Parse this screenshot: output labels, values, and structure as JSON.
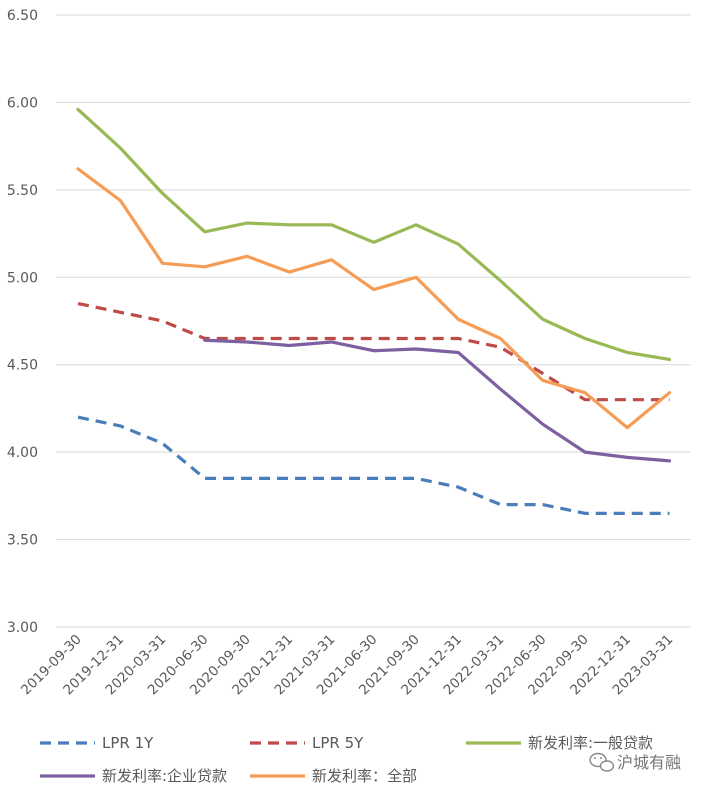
{
  "chart_data": {
    "type": "line",
    "categories": [
      "2019-09-30",
      "2019-12-31",
      "2020-03-31",
      "2020-06-30",
      "2020-09-30",
      "2020-12-31",
      "2021-03-31",
      "2021-06-30",
      "2021-09-30",
      "2021-12-31",
      "2022-03-31",
      "2022-06-30",
      "2022-09-30",
      "2022-12-31",
      "2023-03-31"
    ],
    "ylim": [
      3.0,
      6.5
    ],
    "yticks": [
      "3.00",
      "3.50",
      "4.00",
      "4.50",
      "5.00",
      "5.50",
      "6.00",
      "6.50"
    ],
    "grid": true,
    "legend_position": "bottom",
    "series": [
      {
        "name": "LPR 1Y",
        "color": "#4a7ebb",
        "dash": true,
        "values": [
          4.2,
          4.15,
          4.05,
          3.85,
          3.85,
          3.85,
          3.85,
          3.85,
          3.85,
          3.8,
          3.7,
          3.7,
          3.65,
          3.65,
          3.65
        ]
      },
      {
        "name": "LPR 5Y",
        "color": "#be4b48",
        "dash": true,
        "values": [
          4.85,
          4.8,
          4.75,
          4.65,
          4.65,
          4.65,
          4.65,
          4.65,
          4.65,
          4.65,
          4.6,
          4.45,
          4.3,
          4.3,
          4.3
        ]
      },
      {
        "name": "新发利率:一般贷款",
        "color": "#98b954",
        "dash": false,
        "values": [
          5.96,
          5.74,
          5.48,
          5.26,
          5.31,
          5.3,
          5.3,
          5.2,
          5.3,
          5.19,
          4.98,
          4.76,
          4.65,
          4.57,
          4.53
        ]
      },
      {
        "name": "新发利率:企业贷款",
        "color": "#7d60a0",
        "dash": false,
        "values": [
          null,
          null,
          null,
          4.64,
          4.63,
          4.61,
          4.63,
          4.58,
          4.59,
          4.57,
          4.36,
          4.16,
          4.0,
          3.97,
          3.95
        ]
      },
      {
        "name": "新发利率：全部",
        "color": "#f59d56",
        "dash": false,
        "values": [
          5.62,
          5.44,
          5.08,
          5.06,
          5.12,
          5.03,
          5.1,
          4.93,
          5.0,
          4.76,
          4.65,
          4.41,
          4.34,
          4.14,
          4.34
        ]
      }
    ]
  },
  "watermark": {
    "text": "沪城有融",
    "icon": "wechat-icon"
  }
}
